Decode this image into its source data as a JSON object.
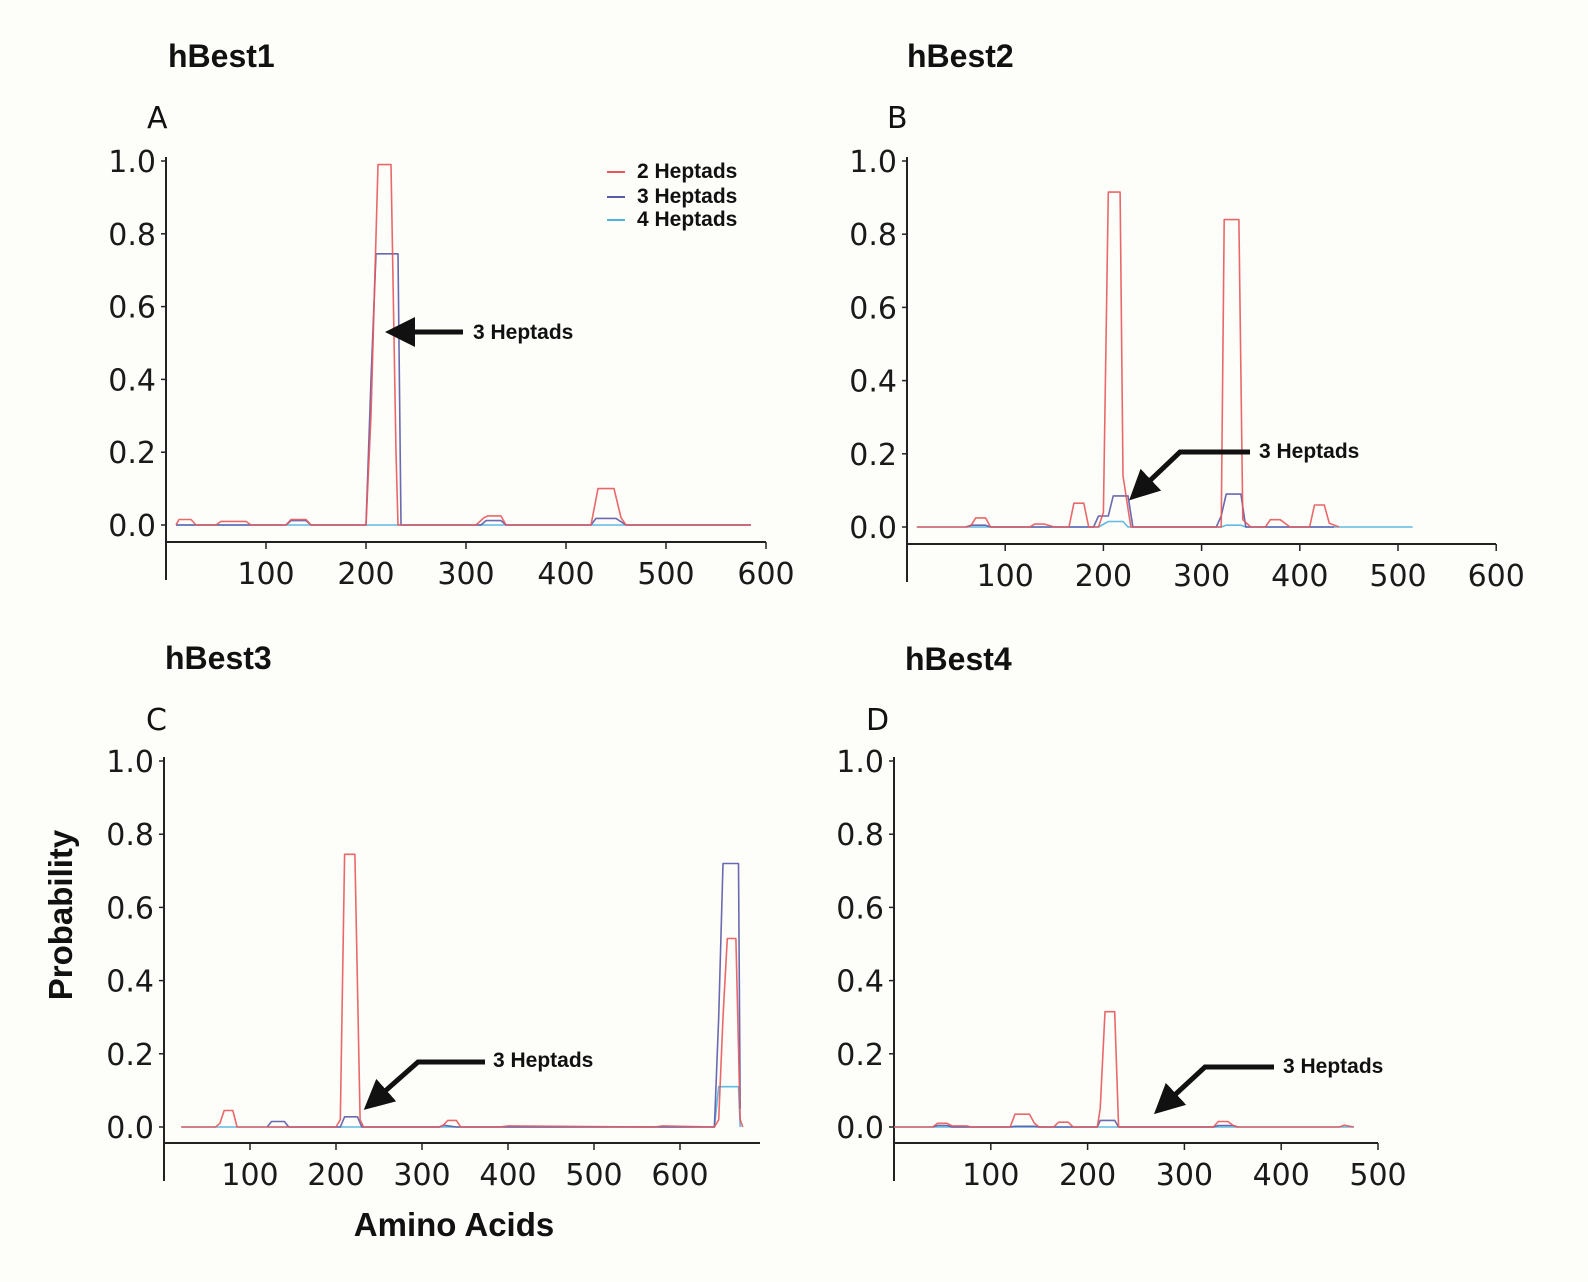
{
  "chart_data": [
    {
      "type": "line",
      "panel_title": "hBest1",
      "panel_letter": "A",
      "xlabel": "",
      "ylabel": "",
      "xlim": [
        0,
        600
      ],
      "ylim": [
        0,
        1.0
      ],
      "xticks": [
        100,
        200,
        300,
        400,
        500,
        600
      ],
      "yticks": [
        "0.0",
        "0.2",
        "0.4",
        "0.6",
        "0.8",
        "1.0"
      ],
      "legend": {
        "placement": "top-right",
        "entries": [
          "2 Heptads",
          "3 Heptads",
          "4 Heptads"
        ]
      },
      "annotation": {
        "text": "3 Heptads",
        "points_to_x": 230,
        "points_to_y": 0.53
      },
      "series": [
        {
          "name": "2 Heptads",
          "color": "#e8585a",
          "x": [
            10,
            13,
            25,
            30,
            50,
            55,
            80,
            85,
            120,
            125,
            140,
            145,
            200,
            205,
            212,
            225,
            230,
            232,
            300,
            310,
            318,
            322,
            335,
            340,
            425,
            432,
            448,
            455,
            460,
            585
          ],
          "y": [
            0,
            0.015,
            0.015,
            0,
            0,
            0.01,
            0.01,
            0,
            0,
            0.015,
            0.015,
            0,
            0,
            0.3,
            0.99,
            0.99,
            0.2,
            0,
            0,
            0,
            0.02,
            0.025,
            0.025,
            0,
            0,
            0.1,
            0.1,
            0.02,
            0,
            0
          ]
        },
        {
          "name": "3 Heptads",
          "color": "#5a5aa8",
          "x": [
            10,
            120,
            125,
            140,
            145,
            200,
            205,
            210,
            232,
            235,
            315,
            320,
            335,
            340,
            425,
            430,
            450,
            460,
            585
          ],
          "y": [
            0,
            0,
            0.012,
            0.012,
            0,
            0,
            0.4,
            0.745,
            0.745,
            0,
            0,
            0.012,
            0.012,
            0,
            0,
            0.018,
            0.018,
            0,
            0
          ]
        },
        {
          "name": "4 Heptads",
          "color": "#4fb3e0",
          "x": [
            10,
            585
          ],
          "y": [
            0,
            0
          ]
        }
      ]
    },
    {
      "type": "line",
      "panel_title": "hBest2",
      "panel_letter": "B",
      "xlabel": "",
      "ylabel": "",
      "xlim": [
        0,
        600
      ],
      "ylim": [
        0,
        1.0
      ],
      "xticks": [
        100,
        200,
        300,
        400,
        500,
        600
      ],
      "yticks": [
        "0.0",
        "0.2",
        "0.4",
        "0.6",
        "0.8",
        "1.0"
      ],
      "annotation": {
        "text": "3 Heptads",
        "points_to_x": 225,
        "points_to_y": 0.08
      },
      "series": [
        {
          "name": "2 Heptads",
          "color": "#e8585a",
          "x": [
            10,
            60,
            65,
            70,
            80,
            85,
            125,
            130,
            140,
            150,
            165,
            170,
            180,
            185,
            195,
            200,
            205,
            217,
            220,
            225,
            228,
            320,
            323,
            338,
            342,
            350,
            365,
            370,
            380,
            390,
            410,
            415,
            425,
            430,
            440
          ],
          "y": [
            0,
            0,
            0.003,
            0.025,
            0.025,
            0,
            0,
            0.008,
            0.008,
            0,
            0,
            0.065,
            0.065,
            0,
            0,
            0.04,
            0.915,
            0.915,
            0.14,
            0.05,
            0,
            0,
            0.84,
            0.84,
            0.02,
            0,
            0,
            0.02,
            0.02,
            0,
            0,
            0.06,
            0.06,
            0.01,
            0
          ]
        },
        {
          "name": "3 Heptads",
          "color": "#5a5aa8",
          "x": [
            60,
            65,
            80,
            85,
            190,
            195,
            205,
            210,
            225,
            230,
            315,
            320,
            325,
            340,
            345,
            415,
            435
          ],
          "y": [
            0,
            0.005,
            0.005,
            0,
            0,
            0.03,
            0.03,
            0.085,
            0.085,
            0,
            0,
            0.03,
            0.09,
            0.09,
            0,
            0,
            0
          ]
        },
        {
          "name": "4 Heptads",
          "color": "#4fb3e0",
          "x": [
            10,
            195,
            205,
            220,
            225,
            320,
            325,
            340,
            345,
            515
          ],
          "y": [
            0,
            0,
            0.015,
            0.015,
            0,
            0,
            0.005,
            0.005,
            0,
            0
          ]
        }
      ]
    },
    {
      "type": "line",
      "panel_title": "hBest3",
      "panel_letter": "C",
      "xlabel": "Amino Acids",
      "ylabel": "Probability",
      "xlim": [
        0,
        700
      ],
      "ylim": [
        0,
        1.0
      ],
      "xticks": [
        100,
        200,
        300,
        400,
        500,
        600
      ],
      "yticks": [
        "0.0",
        "0.2",
        "0.4",
        "0.6",
        "0.8",
        "1.0"
      ],
      "annotation": {
        "text": "3 Heptads",
        "points_to_x": 240,
        "points_to_y": 0.05
      },
      "series": [
        {
          "name": "2 Heptads",
          "color": "#e8585a",
          "x": [
            20,
            60,
            65,
            70,
            80,
            85,
            200,
            205,
            210,
            222,
            228,
            232,
            320,
            325,
            330,
            340,
            345,
            390,
            400,
            570,
            580,
            640,
            645,
            650,
            655,
            665,
            670,
            673
          ],
          "y": [
            0,
            0,
            0.01,
            0.045,
            0.045,
            0,
            0,
            0.02,
            0.745,
            0.745,
            0.02,
            0,
            0,
            0.005,
            0.018,
            0.018,
            0,
            0,
            0.003,
            0,
            0.003,
            0,
            0.02,
            0.3,
            0.515,
            0.515,
            0.02,
            0
          ]
        },
        {
          "name": "3 Heptads",
          "color": "#5a5aa8",
          "x": [
            120,
            125,
            140,
            145,
            205,
            210,
            225,
            230,
            320,
            325,
            340,
            640,
            645,
            650,
            668,
            670
          ],
          "y": [
            0,
            0.015,
            0.015,
            0,
            0,
            0.028,
            0.028,
            0,
            0,
            0.005,
            0,
            0,
            0.3,
            0.72,
            0.72,
            0.05
          ]
        },
        {
          "name": "4 Heptads",
          "color": "#4fb3e0",
          "x": [
            20,
            640,
            645,
            668,
            670
          ],
          "y": [
            0,
            0,
            0.11,
            0.11,
            0
          ]
        }
      ]
    },
    {
      "type": "line",
      "panel_title": "hBest4",
      "panel_letter": "D",
      "xlabel": "",
      "ylabel": "",
      "xlim": [
        0,
        500
      ],
      "ylim": [
        0,
        1.0
      ],
      "xticks": [
        100,
        200,
        300,
        400,
        500
      ],
      "yticks": [
        "0.0",
        "0.2",
        "0.4",
        "0.6",
        "0.8",
        "1.0"
      ],
      "annotation": {
        "text": "3 Heptads",
        "points_to_x": 222,
        "points_to_y": 0.02
      },
      "series": [
        {
          "name": "2 Heptads",
          "color": "#e8585a",
          "x": [
            0,
            35,
            40,
            45,
            55,
            60,
            65,
            75,
            80,
            120,
            125,
            140,
            145,
            150,
            165,
            170,
            180,
            185,
            210,
            213,
            218,
            228,
            232,
            300,
            320,
            330,
            335,
            345,
            350,
            355,
            460,
            465,
            475
          ],
          "y": [
            0,
            0,
            0,
            0.01,
            0.01,
            0.003,
            0.003,
            0.003,
            0,
            0,
            0.035,
            0.035,
            0.01,
            0,
            0,
            0.013,
            0.013,
            0,
            0,
            0.05,
            0.315,
            0.315,
            0,
            0,
            0,
            0,
            0.015,
            0.015,
            0.005,
            0,
            0,
            0.005,
            0
          ]
        },
        {
          "name": "3 Heptads",
          "color": "#5a5aa8",
          "x": [
            40,
            45,
            55,
            60,
            120,
            125,
            145,
            150,
            210,
            213,
            228,
            232,
            330,
            335,
            350,
            355
          ],
          "y": [
            0,
            0.004,
            0.004,
            0,
            0,
            0.002,
            0.002,
            0,
            0,
            0.018,
            0.018,
            0,
            0,
            0.004,
            0.004,
            0
          ]
        },
        {
          "name": "4 Heptads",
          "color": "#4fb3e0",
          "x": [
            0,
            475
          ],
          "y": [
            0,
            0
          ]
        }
      ]
    }
  ]
}
